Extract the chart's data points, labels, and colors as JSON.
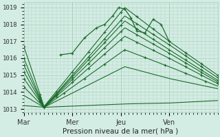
{
  "bg_color": "#d4ede4",
  "grid_color": "#aacfbe",
  "line_color": "#1a6b2a",
  "xlabel": "Pression niveau de la mer( hPa )",
  "xlim": [
    0,
    96
  ],
  "ylim": [
    1012.8,
    1019.3
  ],
  "yticks": [
    1013,
    1014,
    1015,
    1016,
    1017,
    1018,
    1019
  ],
  "xtick_labels": [
    "Mar",
    "Mer",
    "Jeu",
    "Ven"
  ],
  "xtick_positions": [
    0,
    24,
    48,
    72
  ],
  "series": [
    {
      "points": [
        [
          0,
          1016.7
        ],
        [
          10,
          1013.15
        ],
        [
          50,
          1019.0
        ],
        [
          72,
          1017.0
        ],
        [
          96,
          1015.0
        ]
      ],
      "markevery": 4
    },
    {
      "points": [
        [
          0,
          1016.0
        ],
        [
          10,
          1013.1
        ],
        [
          50,
          1018.5
        ],
        [
          72,
          1016.8
        ],
        [
          96,
          1014.85
        ]
      ],
      "markevery": 4
    },
    {
      "points": [
        [
          0,
          1015.6
        ],
        [
          10,
          1013.1
        ],
        [
          50,
          1018.2
        ],
        [
          72,
          1016.5
        ],
        [
          96,
          1014.7
        ]
      ],
      "markevery": 4
    },
    {
      "points": [
        [
          0,
          1015.2
        ],
        [
          10,
          1013.1
        ],
        [
          50,
          1017.8
        ],
        [
          72,
          1016.3
        ],
        [
          96,
          1014.6
        ]
      ],
      "markevery": 4
    },
    {
      "points": [
        [
          0,
          1014.8
        ],
        [
          10,
          1013.1
        ],
        [
          50,
          1017.3
        ],
        [
          72,
          1016.0
        ],
        [
          96,
          1014.5
        ]
      ],
      "markevery": 4
    },
    {
      "points": [
        [
          0,
          1014.3
        ],
        [
          10,
          1013.1
        ],
        [
          50,
          1016.5
        ],
        [
          72,
          1015.5
        ],
        [
          96,
          1014.35
        ]
      ],
      "markevery": 5
    },
    {
      "points": [
        [
          0,
          1013.8
        ],
        [
          10,
          1013.1
        ],
        [
          50,
          1015.5
        ],
        [
          72,
          1014.8
        ],
        [
          96,
          1014.2
        ]
      ],
      "markevery": 5
    },
    {
      "points": [
        [
          0,
          1013.2
        ],
        [
          10,
          1013.1
        ],
        [
          50,
          1013.3
        ],
        [
          72,
          1013.35
        ],
        [
          96,
          1013.5
        ]
      ],
      "markevery": 6
    }
  ],
  "marker_series": [
    0,
    1,
    2
  ],
  "peak_segment": [
    [
      18,
      1016.2
    ],
    [
      24,
      1016.3
    ],
    [
      30,
      1017.2
    ],
    [
      36,
      1017.8
    ],
    [
      40,
      1018.0
    ],
    [
      44,
      1018.5
    ],
    [
      47,
      1019.0
    ],
    [
      50,
      1018.9
    ],
    [
      53,
      1018.4
    ],
    [
      56,
      1017.6
    ],
    [
      60,
      1017.5
    ],
    [
      64,
      1018.3
    ],
    [
      68,
      1018.0
    ],
    [
      72,
      1017.0
    ]
  ]
}
